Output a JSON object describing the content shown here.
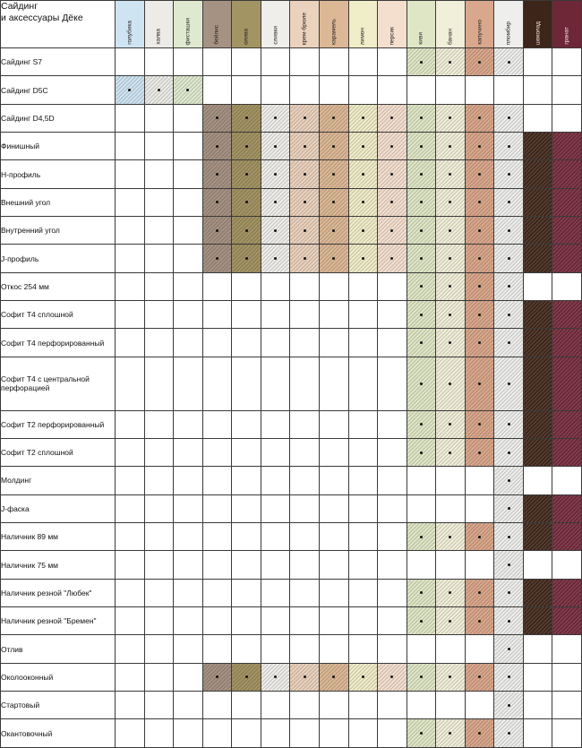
{
  "header": {
    "title_line1": "Сайдинг",
    "title_line2": "и аксессуары Дёке"
  },
  "colors": [
    {
      "label": "голубика",
      "hex": "#cfe4f2",
      "dark": false
    },
    {
      "label": "халва",
      "hex": "#ecebe7",
      "dark": false
    },
    {
      "label": "фисташки",
      "hex": "#dfe9cf",
      "dark": false
    },
    {
      "label": "бейлис",
      "hex": "#a69283",
      "dark": false
    },
    {
      "label": "олива",
      "hex": "#a39464",
      "dark": false
    },
    {
      "label": "сливки",
      "hex": "#efeeea",
      "dark": false
    },
    {
      "label": "крем-брюле",
      "hex": "#ead2bd",
      "dark": false
    },
    {
      "label": "карамель",
      "hex": "#dcb896",
      "dark": false
    },
    {
      "label": "лимон",
      "hex": "#f0edc9",
      "dark": false
    },
    {
      "label": "персик",
      "hex": "#f4dfcf",
      "dark": false
    },
    {
      "label": "киви",
      "hex": "#dfe6c6",
      "dark": false
    },
    {
      "label": "банан",
      "hex": "#f1eed9",
      "dark": false
    },
    {
      "label": "капучино",
      "hex": "#d9a78b",
      "dark": false
    },
    {
      "label": "пломбир",
      "hex": "#eeeeec",
      "dark": false
    },
    {
      "label": "шоколад",
      "hex": "#3d2519",
      "dark": true
    },
    {
      "label": "гранат",
      "hex": "#6d2737",
      "dark": true
    }
  ],
  "rows": [
    {
      "label": "Сайдинг S7",
      "avail": [
        10,
        11,
        12,
        13
      ]
    },
    {
      "label": "Сайдинг D5C",
      "avail": [
        0,
        1,
        2
      ]
    },
    {
      "label": "Сайдинг D4,5D",
      "avail": [
        3,
        4,
        5,
        6,
        7,
        8,
        9,
        10,
        11,
        12,
        13
      ]
    },
    {
      "label": "Финишный",
      "avail": [
        3,
        4,
        5,
        6,
        7,
        8,
        9,
        10,
        11,
        12,
        13,
        14,
        15
      ]
    },
    {
      "label": "H-профиль",
      "avail": [
        3,
        4,
        5,
        6,
        7,
        8,
        9,
        10,
        11,
        12,
        13,
        14,
        15
      ]
    },
    {
      "label": "Внешний угол",
      "avail": [
        3,
        4,
        5,
        6,
        7,
        8,
        9,
        10,
        11,
        12,
        13,
        14,
        15
      ]
    },
    {
      "label": "Внутренний угол",
      "avail": [
        3,
        4,
        5,
        6,
        7,
        8,
        9,
        10,
        11,
        12,
        13,
        14,
        15
      ]
    },
    {
      "label": "J-профиль",
      "avail": [
        3,
        4,
        5,
        6,
        7,
        8,
        9,
        10,
        11,
        12,
        13,
        14,
        15
      ]
    },
    {
      "label": "Откос 254 мм",
      "avail": [
        10,
        11,
        12,
        13
      ]
    },
    {
      "label": "Софит Т4 сплошной",
      "avail": [
        10,
        11,
        12,
        13,
        14,
        15
      ]
    },
    {
      "label": "Софит Т4 перфорированный",
      "avail": [
        10,
        11,
        12,
        13,
        14,
        15
      ]
    },
    {
      "label": "Софит Т4 с центральной перфорацией",
      "avail": [
        10,
        11,
        12,
        13,
        14,
        15
      ]
    },
    {
      "label": "Софит Т2 перфорированный",
      "avail": [
        10,
        11,
        12,
        13,
        14,
        15
      ]
    },
    {
      "label": "Софит Т2 сплошной",
      "avail": [
        10,
        11,
        12,
        13,
        14,
        15
      ]
    },
    {
      "label": "Молдинг",
      "avail": [
        13
      ]
    },
    {
      "label": "J-фаска",
      "avail": [
        13,
        14,
        15
      ]
    },
    {
      "label": "Наличник 89 мм",
      "avail": [
        10,
        11,
        12,
        13,
        14,
        15
      ]
    },
    {
      "label": "Наличник 75 мм",
      "avail": [
        13
      ]
    },
    {
      "label": "Наличник резной \"Любек\"",
      "avail": [
        10,
        11,
        12,
        13,
        14,
        15
      ]
    },
    {
      "label": "Наличник резной \"Бремен\"",
      "avail": [
        10,
        11,
        12,
        13,
        14,
        15
      ]
    },
    {
      "label": "Отлив",
      "avail": [
        13
      ]
    },
    {
      "label": "Околооконный",
      "avail": [
        3,
        4,
        5,
        6,
        7,
        8,
        9,
        10,
        11,
        12,
        13
      ]
    },
    {
      "label": "Стартовый",
      "avail": [
        13
      ]
    },
    {
      "label": "Окантовочный",
      "avail": [
        10,
        11,
        12,
        13
      ]
    }
  ]
}
